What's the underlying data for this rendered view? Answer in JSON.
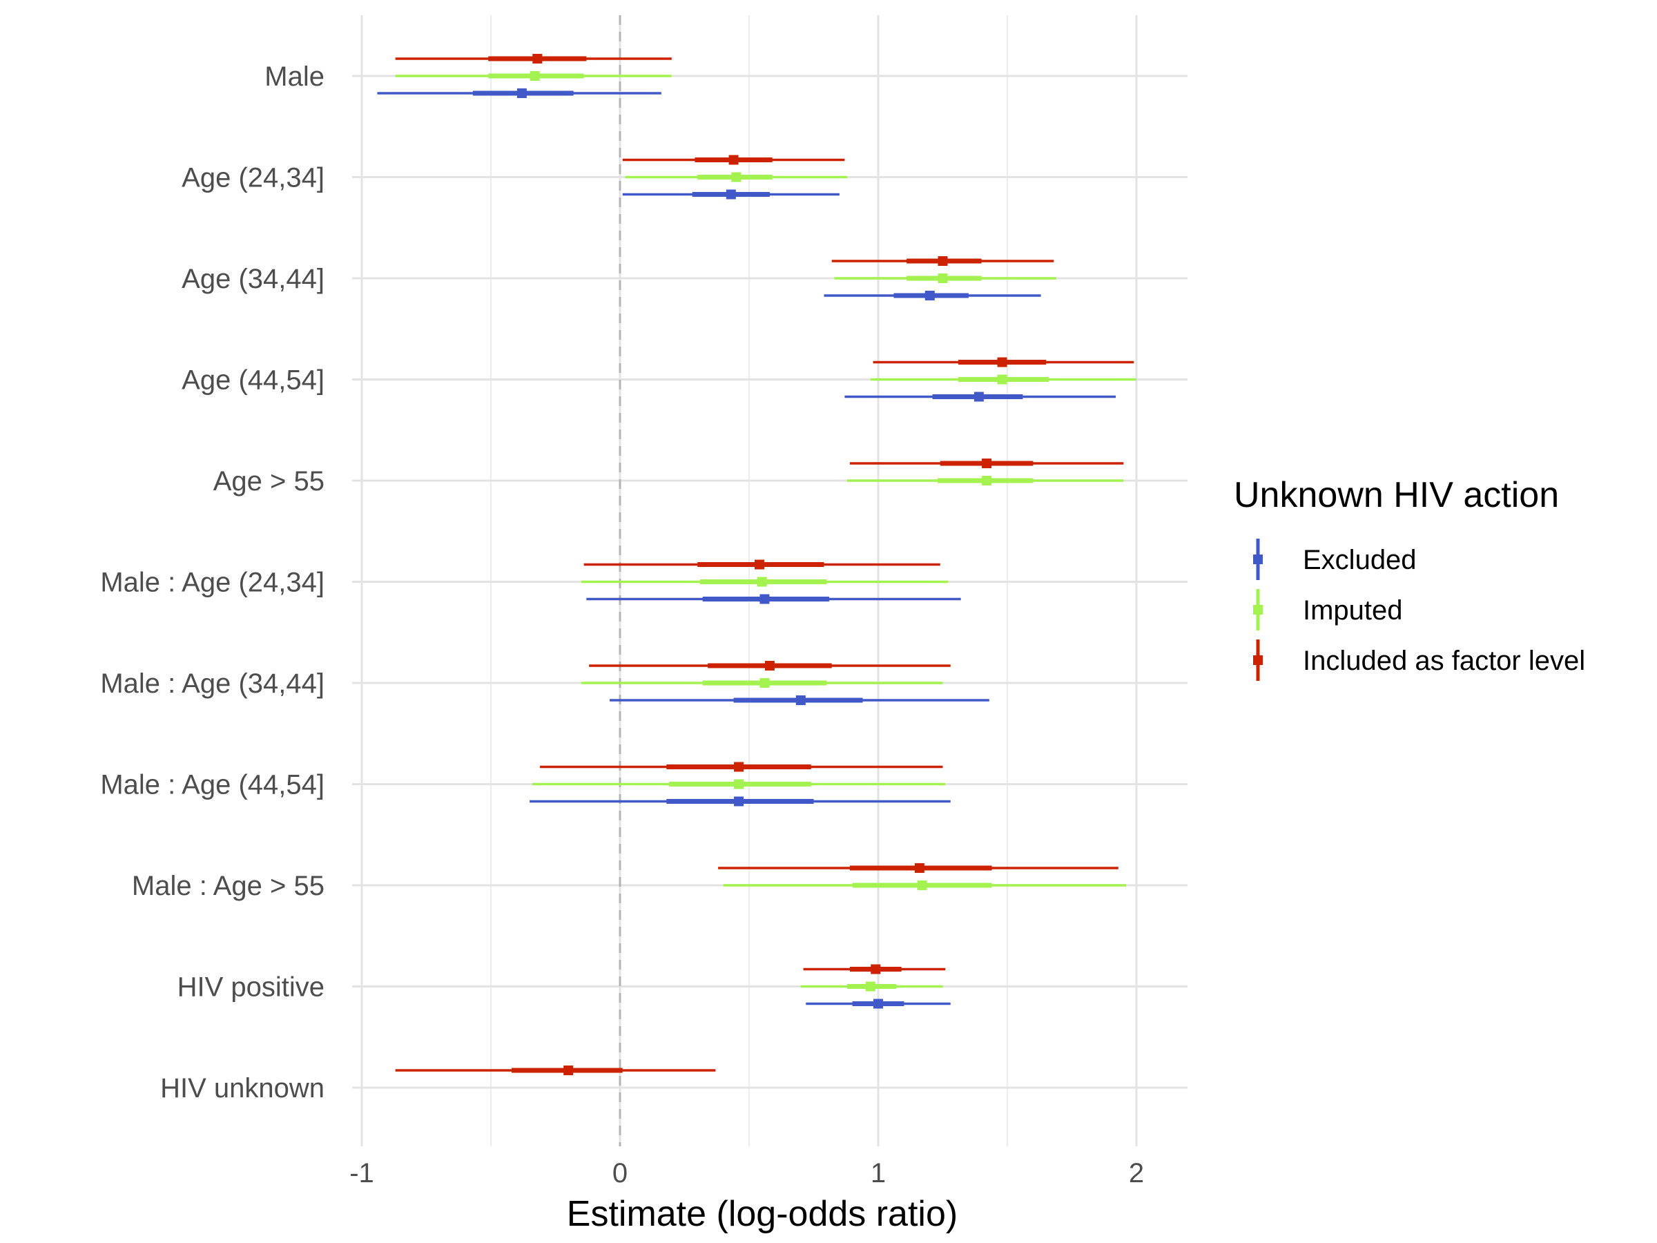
{
  "chart_data": {
    "type": "forest",
    "title": "",
    "xlabel": "Estimate (log-odds ratio)",
    "ylabel": "",
    "xlim": [
      -1.1,
      2.2
    ],
    "x_ticks": [
      -1,
      0,
      1,
      2
    ],
    "x_tick_labels": [
      "-1",
      "0",
      "1",
      "2"
    ],
    "reference_line": 0,
    "grid": true,
    "legend_title": "Unknown HIV action",
    "legend_position": "right",
    "categories": [
      "Male",
      "Age (24,34]",
      "Age (34,44]",
      "Age (44,54]",
      "Age > 55",
      "Male : Age (24,34]",
      "Male : Age (34,44]",
      "Male : Age (44,54]",
      "Male : Age > 55",
      "HIV positive",
      "HIV unknown"
    ],
    "series": [
      {
        "name": "Included as factor level",
        "color": "#CC2200",
        "points": [
          {
            "term": "Male",
            "estimate": -0.32,
            "inner": [
              -0.51,
              -0.13
            ],
            "outer": [
              -0.87,
              0.2
            ]
          },
          {
            "term": "Age (24,34]",
            "estimate": 0.44,
            "inner": [
              0.29,
              0.59
            ],
            "outer": [
              0.01,
              0.87
            ]
          },
          {
            "term": "Age (34,44]",
            "estimate": 1.25,
            "inner": [
              1.11,
              1.4
            ],
            "outer": [
              0.82,
              1.68
            ]
          },
          {
            "term": "Age (44,54]",
            "estimate": 1.48,
            "inner": [
              1.31,
              1.65
            ],
            "outer": [
              0.98,
              1.99
            ]
          },
          {
            "term": "Age > 55",
            "estimate": 1.42,
            "inner": [
              1.24,
              1.6
            ],
            "outer": [
              0.89,
              1.95
            ]
          },
          {
            "term": "Male : Age (24,34]",
            "estimate": 0.54,
            "inner": [
              0.3,
              0.79
            ],
            "outer": [
              -0.14,
              1.24
            ]
          },
          {
            "term": "Male : Age (34,44]",
            "estimate": 0.58,
            "inner": [
              0.34,
              0.82
            ],
            "outer": [
              -0.12,
              1.28
            ]
          },
          {
            "term": "Male : Age (44,54]",
            "estimate": 0.46,
            "inner": [
              0.18,
              0.74
            ],
            "outer": [
              -0.31,
              1.25
            ]
          },
          {
            "term": "Male : Age > 55",
            "estimate": 1.16,
            "inner": [
              0.89,
              1.44
            ],
            "outer": [
              0.38,
              1.93
            ]
          },
          {
            "term": "HIV positive",
            "estimate": 0.99,
            "inner": [
              0.89,
              1.09
            ],
            "outer": [
              0.71,
              1.26
            ]
          },
          {
            "term": "HIV unknown",
            "estimate": -0.2,
            "inner": [
              -0.42,
              0.01
            ],
            "outer": [
              -0.87,
              0.37
            ]
          }
        ]
      },
      {
        "name": "Imputed",
        "color": "#A3F24F",
        "points": [
          {
            "term": "Male",
            "estimate": -0.33,
            "inner": [
              -0.51,
              -0.14
            ],
            "outer": [
              -0.87,
              0.2
            ]
          },
          {
            "term": "Age (24,34]",
            "estimate": 0.45,
            "inner": [
              0.3,
              0.59
            ],
            "outer": [
              0.02,
              0.88
            ]
          },
          {
            "term": "Age (34,44]",
            "estimate": 1.25,
            "inner": [
              1.11,
              1.4
            ],
            "outer": [
              0.83,
              1.69
            ]
          },
          {
            "term": "Age (44,54]",
            "estimate": 1.48,
            "inner": [
              1.31,
              1.66
            ],
            "outer": [
              0.97,
              2.0
            ]
          },
          {
            "term": "Age > 55",
            "estimate": 1.42,
            "inner": [
              1.23,
              1.6
            ],
            "outer": [
              0.88,
              1.95
            ]
          },
          {
            "term": "Male : Age (24,34]",
            "estimate": 0.55,
            "inner": [
              0.31,
              0.8
            ],
            "outer": [
              -0.15,
              1.27
            ]
          },
          {
            "term": "Male : Age (34,44]",
            "estimate": 0.56,
            "inner": [
              0.32,
              0.8
            ],
            "outer": [
              -0.15,
              1.25
            ]
          },
          {
            "term": "Male : Age (44,54]",
            "estimate": 0.46,
            "inner": [
              0.19,
              0.74
            ],
            "outer": [
              -0.34,
              1.26
            ]
          },
          {
            "term": "Male : Age > 55",
            "estimate": 1.17,
            "inner": [
              0.9,
              1.44
            ],
            "outer": [
              0.4,
              1.96
            ]
          },
          {
            "term": "HIV positive",
            "estimate": 0.97,
            "inner": [
              0.88,
              1.07
            ],
            "outer": [
              0.7,
              1.25
            ]
          },
          {
            "term": "HIV unknown",
            "estimate": null,
            "inner": null,
            "outer": null
          }
        ]
      },
      {
        "name": "Excluded",
        "color": "#4058C8",
        "points": [
          {
            "term": "Male",
            "estimate": -0.38,
            "inner": [
              -0.57,
              -0.18
            ],
            "outer": [
              -0.94,
              0.16
            ]
          },
          {
            "term": "Age (24,34]",
            "estimate": 0.43,
            "inner": [
              0.28,
              0.58
            ],
            "outer": [
              0.01,
              0.85
            ]
          },
          {
            "term": "Age (34,44]",
            "estimate": 1.2,
            "inner": [
              1.06,
              1.35
            ],
            "outer": [
              0.79,
              1.63
            ]
          },
          {
            "term": "Age (44,54]",
            "estimate": 1.39,
            "inner": [
              1.21,
              1.56
            ],
            "outer": [
              0.87,
              1.92
            ]
          },
          {
            "term": "Age > 55",
            "estimate": null,
            "inner": null,
            "outer": null
          },
          {
            "term": "Male : Age (24,34]",
            "estimate": 0.56,
            "inner": [
              0.32,
              0.81
            ],
            "outer": [
              -0.13,
              1.32
            ]
          },
          {
            "term": "Male : Age (34,44]",
            "estimate": 0.7,
            "inner": [
              0.44,
              0.94
            ],
            "outer": [
              -0.04,
              1.43
            ]
          },
          {
            "term": "Male : Age (44,54]",
            "estimate": 0.46,
            "inner": [
              0.18,
              0.75
            ],
            "outer": [
              -0.35,
              1.28
            ]
          },
          {
            "term": "Male : Age > 55",
            "estimate": null,
            "inner": null,
            "outer": null
          },
          {
            "term": "HIV positive",
            "estimate": 1.0,
            "inner": [
              0.9,
              1.1
            ],
            "outer": [
              0.72,
              1.28
            ]
          },
          {
            "term": "HIV unknown",
            "estimate": null,
            "inner": null,
            "outer": null
          }
        ]
      }
    ],
    "legend_order": [
      "Excluded",
      "Imputed",
      "Included as factor level"
    ]
  }
}
